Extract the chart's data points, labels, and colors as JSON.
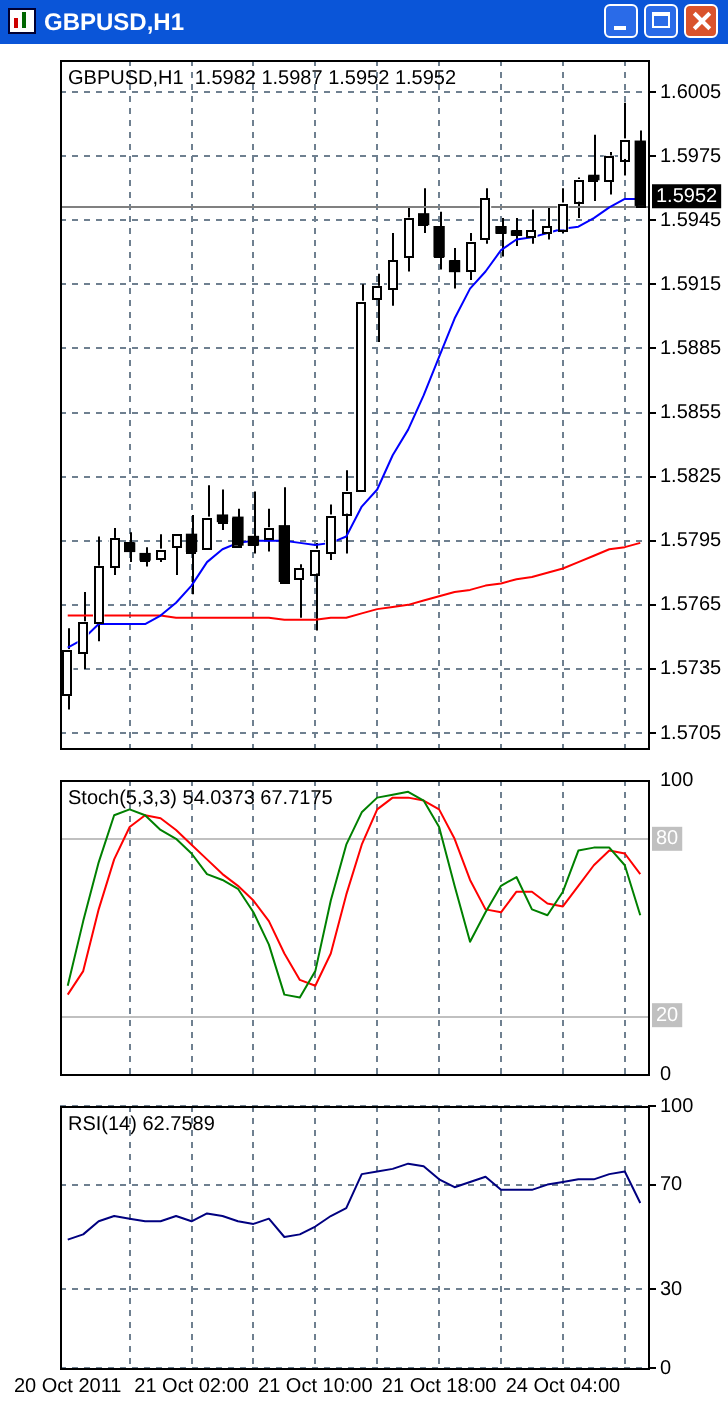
{
  "chart_data": [
    {
      "type": "candlestick",
      "title": "GBPUSD,H1",
      "subtitle": "GBPUSD,H1  1.5982 1.5987 1.5952 1.5952",
      "categories": [
        null,
        null,
        null,
        null,
        null,
        null,
        null,
        null,
        null,
        null,
        null,
        null,
        null,
        null,
        null,
        null,
        null,
        null,
        null,
        null,
        null,
        null,
        null,
        null,
        null,
        null,
        null,
        null,
        null,
        null,
        null,
        null,
        null,
        null,
        null,
        null,
        null,
        null
      ],
      "ohlc": [
        [
          1.5723,
          1.5754,
          1.5716,
          1.5744
        ],
        [
          1.5743,
          1.5771,
          1.5735,
          1.5757
        ],
        [
          1.5757,
          1.5797,
          1.5748,
          1.5783
        ],
        [
          1.5783,
          1.5801,
          1.5779,
          1.5796
        ],
        [
          1.5794,
          1.5799,
          1.5785,
          1.579
        ],
        [
          1.5789,
          1.5792,
          1.5783,
          1.5786
        ],
        [
          1.5787,
          1.5798,
          1.5785,
          1.5791
        ],
        [
          1.5792,
          1.5798,
          1.5779,
          1.5798
        ],
        [
          1.5798,
          1.5807,
          1.577,
          1.579
        ],
        [
          1.5792,
          1.5821,
          1.5792,
          1.5806
        ],
        [
          1.5807,
          1.5819,
          1.58,
          1.5804
        ],
        [
          1.5806,
          1.581,
          1.5792,
          1.5793
        ],
        [
          1.5797,
          1.5818,
          1.5789,
          1.5793
        ],
        [
          1.5796,
          1.581,
          1.579,
          1.5801
        ],
        [
          1.5802,
          1.582,
          1.5775,
          1.5776
        ],
        [
          1.5777,
          1.5784,
          1.5759,
          1.5782
        ],
        [
          1.578,
          1.5794,
          1.5753,
          1.5791
        ],
        [
          1.579,
          1.5812,
          1.5786,
          1.5807
        ],
        [
          1.5808,
          1.5828,
          1.5789,
          1.5818
        ],
        [
          1.5819,
          1.5915,
          1.5818,
          1.5907
        ],
        [
          1.5908,
          1.592,
          1.5888,
          1.5914
        ],
        [
          1.5913,
          1.5939,
          1.5905,
          1.5926
        ],
        [
          1.5928,
          1.5951,
          1.5921,
          1.5946
        ],
        [
          1.5948,
          1.596,
          1.5939,
          1.5943
        ],
        [
          1.5942,
          1.5949,
          1.5922,
          1.5928
        ],
        [
          1.5926,
          1.5932,
          1.5913,
          1.5921
        ],
        [
          1.5922,
          1.5939,
          1.5917,
          1.5935
        ],
        [
          1.5936,
          1.596,
          1.5934,
          1.5955
        ],
        [
          1.5942,
          1.5946,
          1.5928,
          1.5939
        ],
        [
          1.594,
          1.5946,
          1.5933,
          1.5938
        ],
        [
          1.5937,
          1.595,
          1.5934,
          1.594
        ],
        [
          1.5939,
          1.5951,
          1.5936,
          1.5942
        ],
        [
          1.5941,
          1.596,
          1.5939,
          1.5953
        ],
        [
          1.5954,
          1.5965,
          1.5946,
          1.5964
        ],
        [
          1.5966,
          1.5985,
          1.5954,
          1.5964
        ],
        [
          1.5964,
          1.5977,
          1.5957,
          1.5975
        ],
        [
          1.5974,
          1.6,
          1.5966,
          1.5983
        ],
        [
          1.5982,
          1.5987,
          1.5952,
          1.5952
        ]
      ],
      "colors": [
        "#ffffff",
        "#ffffff",
        "#ffffff",
        "#ffffff",
        "#000000",
        "#000000",
        "#ffffff",
        "#ffffff",
        "#000000",
        "#ffffff",
        "#000000",
        "#000000",
        "#000000",
        "#ffffff",
        "#000000",
        "#ffffff",
        "#ffffff",
        "#ffffff",
        "#ffffff",
        "#ffffff",
        "#ffffff",
        "#ffffff",
        "#ffffff",
        "#000000",
        "#000000",
        "#000000",
        "#ffffff",
        "#ffffff",
        "#000000",
        "#000000",
        "#ffffff",
        "#ffffff",
        "#ffffff",
        "#ffffff",
        "#000000",
        "#ffffff",
        "#ffffff",
        "#000000"
      ],
      "series": [
        {
          "type": "line",
          "color": "#0000ff",
          "values": [
            1.5745,
            1.5749,
            1.5756,
            1.5756,
            1.5756,
            1.5756,
            1.576,
            1.5766,
            1.5774,
            1.5785,
            1.5791,
            1.5794,
            1.5795,
            1.5795,
            1.5795,
            1.5794,
            1.5793,
            1.5794,
            1.5797,
            1.5811,
            1.5819,
            1.5835,
            1.5847,
            1.5863,
            1.5881,
            1.5899,
            1.5913,
            1.5921,
            1.5931,
            1.5936,
            1.5937,
            1.5939,
            1.5941,
            1.5942,
            1.5946,
            1.5951,
            1.5955,
            1.5955
          ]
        },
        {
          "type": "line",
          "color": "#ff0000",
          "values": [
            1.576,
            1.576,
            1.576,
            1.576,
            1.576,
            1.576,
            1.576,
            1.5759,
            1.5759,
            1.5759,
            1.5759,
            1.5759,
            1.5759,
            1.5759,
            1.5758,
            1.5758,
            1.5758,
            1.5759,
            1.5759,
            1.5761,
            1.5763,
            1.5764,
            1.5765,
            1.5767,
            1.5769,
            1.5771,
            1.5772,
            1.5774,
            1.5775,
            1.5777,
            1.5778,
            1.578,
            1.5782,
            1.5785,
            1.5788,
            1.5791,
            1.5792,
            1.5794
          ]
        }
      ],
      "ylim": [
        1.5698,
        1.602
      ],
      "yticks": [
        1.5705,
        1.5735,
        1.5765,
        1.5795,
        1.5825,
        1.5855,
        1.5885,
        1.5915,
        1.5945,
        1.5975,
        1.6005
      ],
      "grid": true,
      "tick_labels": "y",
      "ref_lines": [
        {
          "axis": "y",
          "value": 1.5952,
          "label": "1.5952",
          "color": "#808080"
        }
      ]
    },
    {
      "type": "line",
      "title": "Stoch(5,3,3) 54.0373 67.7175",
      "categories": [
        null,
        null,
        null,
        null,
        null,
        null,
        null,
        null,
        null,
        null,
        null,
        null,
        null,
        null,
        null,
        null,
        null,
        null,
        null,
        null,
        null,
        null,
        null,
        null,
        null,
        null,
        null,
        null,
        null,
        null,
        null,
        null,
        null,
        null,
        null,
        null,
        null,
        null
      ],
      "series": [
        {
          "color": "#008000",
          "values": [
            30,
            52,
            72,
            88,
            90,
            88,
            83,
            80,
            75,
            68,
            66,
            63,
            55,
            44,
            27,
            26,
            35,
            59,
            78,
            89,
            94,
            95,
            96,
            93,
            84,
            64,
            45,
            55,
            64,
            67,
            56,
            54,
            62,
            76,
            77,
            77,
            71,
            54
          ]
        },
        {
          "color": "#ff0000",
          "values": [
            27,
            35,
            56,
            73,
            84,
            88,
            87,
            83,
            78,
            73,
            68,
            64,
            59,
            52,
            41,
            32,
            30,
            41,
            61,
            78,
            90,
            94,
            94,
            93,
            90,
            80,
            66,
            56,
            55,
            62,
            62,
            58,
            57,
            64,
            71,
            76,
            75,
            68
          ]
        }
      ],
      "ylim": [
        0,
        100
      ],
      "yticks": [
        0,
        100
      ],
      "grid": "x",
      "tick_labels": "y",
      "ref_lines": [
        {
          "axis": "y",
          "value": 80,
          "label": "80",
          "color": "#c0c0c0"
        },
        {
          "axis": "y",
          "value": 20,
          "label": "20",
          "color": "#c0c0c0"
        }
      ]
    },
    {
      "type": "line",
      "title": "RSI(14) 62.7589",
      "categories": [
        "20 Oct 2011",
        null,
        null,
        null,
        null,
        null,
        null,
        null,
        "21 Oct 02:00",
        null,
        null,
        null,
        null,
        null,
        null,
        null,
        "21 Oct 10:00",
        null,
        null,
        null,
        null,
        null,
        null,
        null,
        "21 Oct 18:00",
        null,
        null,
        null,
        null,
        null,
        null,
        null,
        "24 Oct 04:00",
        null,
        null,
        null,
        null,
        null
      ],
      "series": [
        {
          "color": "#000080",
          "values": [
            49,
            51,
            56,
            58,
            57,
            56,
            56,
            58,
            56,
            59,
            58,
            56,
            55,
            57,
            50,
            51,
            54,
            58,
            61,
            74,
            75,
            76,
            78,
            77,
            72,
            69,
            71,
            73,
            68,
            68,
            68,
            70,
            71,
            72,
            72,
            74,
            75,
            63
          ]
        }
      ],
      "ylim": [
        0,
        100
      ],
      "yticks": [
        0,
        30,
        70,
        100
      ],
      "grid": true
    }
  ]
}
